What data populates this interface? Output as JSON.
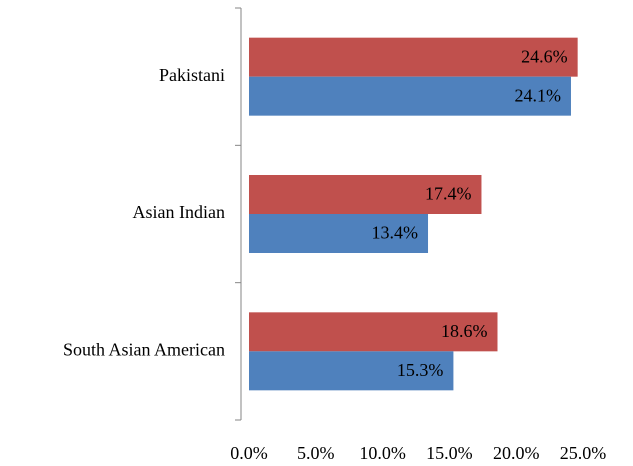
{
  "chart_data": {
    "type": "bar",
    "orientation": "horizontal",
    "categories": [
      "Pakistani",
      "Asian Indian",
      "South Asian American"
    ],
    "series": [
      {
        "color": "#c0504d",
        "values": [
          24.6,
          17.4,
          18.6
        ],
        "value_labels": [
          "24.6%",
          "17.4%",
          "18.6%"
        ]
      },
      {
        "color": "#4f81bd",
        "values": [
          24.1,
          13.4,
          15.3
        ],
        "value_labels": [
          "24.1%",
          "13.4%",
          "15.3%"
        ]
      }
    ],
    "xlim": [
      0,
      25
    ],
    "xticks": [
      {
        "value": 0,
        "label": "0.0%"
      },
      {
        "value": 5,
        "label": "5.0%"
      },
      {
        "value": 10,
        "label": "10.0%"
      },
      {
        "value": 15,
        "label": "15.0%"
      },
      {
        "value": 20,
        "label": "20.0%"
      },
      {
        "value": 25,
        "label": "25.0%"
      }
    ],
    "grid": false
  }
}
